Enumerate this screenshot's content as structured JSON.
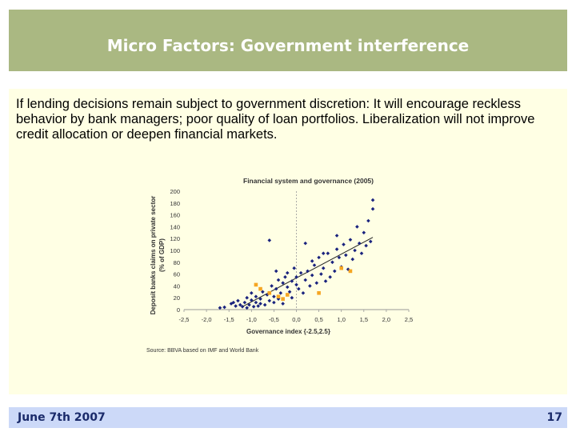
{
  "slide": {
    "title": "Micro Factors: Government interference",
    "body": "If lending decisions remain subject to government discretion: It will encourage reckless behavior by bank managers; poor quality of loan portfolios. Liberalization will not improve credit allocation or deepen financial markets.",
    "footer_date": "June 7th 2007",
    "page_number": "17"
  },
  "colors": {
    "title_bar": "#aab882",
    "content_bg": "#ffffe4",
    "footer_bar": "#ccd9f8",
    "point_blue": "#1a237e",
    "point_orange": "#f5a623"
  },
  "chart_data": {
    "type": "scatter",
    "title": "Financial system and governance (2005)",
    "xlabel": "Governance index {-2.5,2.5}",
    "ylabel": "Deposit banks claims on private sector (% of GDP)",
    "xlim": [
      -2.5,
      2.5
    ],
    "ylim": [
      0,
      200
    ],
    "x_ticks": [
      -2.5,
      -2.0,
      -1.5,
      -1.0,
      -0.5,
      0.0,
      0.5,
      1.0,
      1.5,
      2.0,
      2.5
    ],
    "x_tick_labels": [
      "-2,5",
      "-2,0",
      "-1,5",
      "-1,0",
      "-0,5",
      "0,0",
      "0,5",
      "1,0",
      "1,5",
      "2,0",
      "2,5"
    ],
    "y_ticks": [
      0,
      20,
      40,
      60,
      80,
      100,
      120,
      140,
      160,
      180,
      200
    ],
    "grid": "vertical dotted at x=0",
    "source": "Source: BBVA based on IMF and World Bank",
    "trendline": {
      "from": [
        -1.2,
        5
      ],
      "to": [
        1.7,
        122
      ]
    },
    "series": [
      {
        "marker": "dark blue diamond",
        "points": [
          [
            -1.7,
            3
          ],
          [
            -1.6,
            4
          ],
          [
            -1.45,
            10
          ],
          [
            -1.4,
            12
          ],
          [
            -1.35,
            6
          ],
          [
            -1.3,
            15
          ],
          [
            -1.25,
            8
          ],
          [
            -1.2,
            5
          ],
          [
            -1.15,
            12
          ],
          [
            -1.1,
            20
          ],
          [
            -1.1,
            3
          ],
          [
            -1.05,
            8
          ],
          [
            -1.0,
            16
          ],
          [
            -1.0,
            28
          ],
          [
            -0.95,
            5
          ],
          [
            -0.9,
            22
          ],
          [
            -0.9,
            12
          ],
          [
            -0.85,
            6
          ],
          [
            -0.8,
            18
          ],
          [
            -0.8,
            10
          ],
          [
            -0.75,
            30
          ],
          [
            -0.7,
            8
          ],
          [
            -0.65,
            25
          ],
          [
            -0.6,
            15
          ],
          [
            -0.55,
            40
          ],
          [
            -0.5,
            12
          ],
          [
            -0.5,
            22
          ],
          [
            -0.45,
            35
          ],
          [
            -0.4,
            50
          ],
          [
            -0.4,
            18
          ],
          [
            -0.35,
            28
          ],
          [
            -0.3,
            45
          ],
          [
            -0.3,
            10
          ],
          [
            -0.25,
            55
          ],
          [
            -0.2,
            38
          ],
          [
            -0.2,
            62
          ],
          [
            -0.15,
            30
          ],
          [
            -0.1,
            48
          ],
          [
            -0.1,
            20
          ],
          [
            -0.05,
            70
          ],
          [
            0.0,
            42
          ],
          [
            0.0,
            55
          ],
          [
            0.05,
            35
          ],
          [
            0.1,
            62
          ],
          [
            0.15,
            28
          ],
          [
            0.2,
            50
          ],
          [
            0.25,
            65
          ],
          [
            0.3,
            40
          ],
          [
            0.35,
            58
          ],
          [
            0.4,
            75
          ],
          [
            0.45,
            45
          ],
          [
            0.5,
            88
          ],
          [
            0.55,
            60
          ],
          [
            0.6,
            70
          ],
          [
            0.65,
            48
          ],
          [
            0.7,
            95
          ],
          [
            0.75,
            55
          ],
          [
            0.8,
            80
          ],
          [
            0.85,
            65
          ],
          [
            0.9,
            102
          ],
          [
            0.95,
            88
          ],
          [
            1.0,
            72
          ],
          [
            1.05,
            110
          ],
          [
            1.1,
            92
          ],
          [
            1.15,
            68
          ],
          [
            1.2,
            118
          ],
          [
            1.25,
            85
          ],
          [
            1.3,
            100
          ],
          [
            1.35,
            140
          ],
          [
            1.4,
            112
          ],
          [
            1.45,
            95
          ],
          [
            1.5,
            130
          ],
          [
            1.55,
            108
          ],
          [
            1.6,
            150
          ],
          [
            1.65,
            115
          ],
          [
            1.7,
            170
          ],
          [
            1.7,
            185
          ],
          [
            -0.6,
            117
          ],
          [
            0.2,
            112
          ],
          [
            0.9,
            125
          ],
          [
            0.35,
            82
          ],
          [
            -0.45,
            65
          ],
          [
            0.6,
            95
          ]
        ]
      },
      {
        "marker": "orange square",
        "points": [
          [
            -0.9,
            42
          ],
          [
            -0.8,
            35
          ],
          [
            -0.6,
            28
          ],
          [
            -0.4,
            22
          ],
          [
            -0.3,
            18
          ],
          [
            -0.2,
            25
          ],
          [
            0.5,
            28
          ],
          [
            1.0,
            70
          ],
          [
            1.2,
            65
          ]
        ]
      }
    ]
  }
}
